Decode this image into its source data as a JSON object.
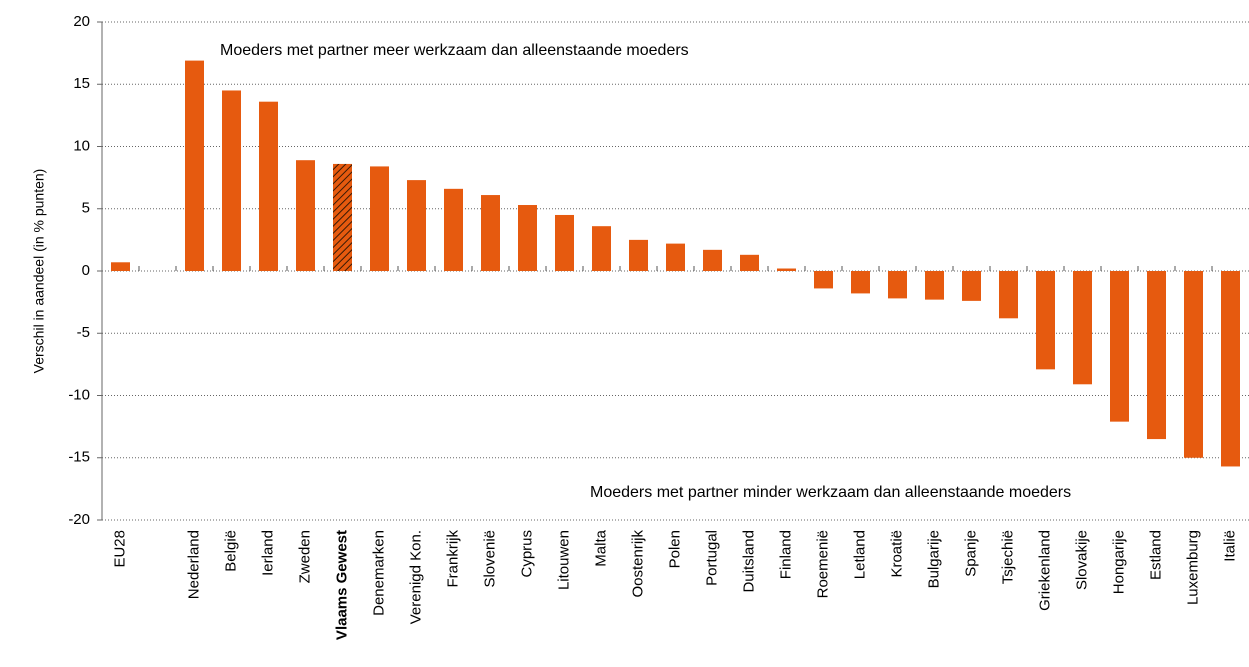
{
  "chart_data": {
    "type": "bar",
    "y_label": "Verschil in aandeel (in % punten)",
    "annotations": [
      "Moeders met partner meer werkzaam dan alleenstaande moeders",
      "Moeders met partner minder werkzaam dan alleenstaande moeders"
    ],
    "categories": [
      "EU28",
      null,
      "Nederland",
      "België",
      "Ierland",
      "Zweden",
      "Vlaams Gewest",
      "Denemarken",
      "Verenigd Kon.",
      "Frankrijk",
      "Slovenië",
      "Cyprus",
      "Litouwen",
      "Malta",
      "Oostenrijk",
      "Polen",
      "Portugal",
      "Duitsland",
      "Finland",
      "Roemenië",
      "Letland",
      "Kroatië",
      "Bulgarije",
      "Spanje",
      "Tsjechië",
      "Griekenland",
      "Slovakije",
      "Hongarije",
      "Estland",
      "Luxemburg",
      "Italië"
    ],
    "values": [
      0.7,
      null,
      16.9,
      14.5,
      13.6,
      8.9,
      8.6,
      8.4,
      7.3,
      6.6,
      6.1,
      5.3,
      4.5,
      3.6,
      2.5,
      2.2,
      1.7,
      1.3,
      0.2,
      -1.4,
      -1.8,
      -2.2,
      -2.3,
      -2.4,
      -3.8,
      -7.9,
      -9.1,
      -12.1,
      -13.5,
      -15.0,
      -15.7
    ],
    "color": "#e65a0f",
    "highlight_index": 6,
    "ylim": [
      -20,
      20
    ],
    "yticks": [
      -20,
      -15,
      -10,
      -5,
      0,
      5,
      10,
      15,
      20
    ],
    "grid": true
  }
}
